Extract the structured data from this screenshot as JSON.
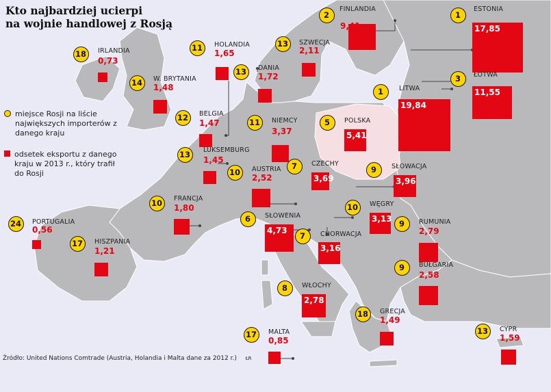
{
  "title_lines": [
    "Kto najbardziej ucierpi",
    "na wojnie handlowej z Rosją"
  ],
  "legend": {
    "rank": "miejsce Rosji na liście największych importerów z danego kraju",
    "share": "odsetek eksportu z danego kraju w 2013 r., który trafił do Rosji"
  },
  "source": "Źródło: United Nations Comtrade (Austria, Holandia i Malta dane za 2012 r.)",
  "credit": "ŁR",
  "colors": {
    "sea": "#e9eaf6",
    "land": "#b9b9bc",
    "poland": "#f6dfe3",
    "marker": "#ffd400",
    "value": "#e30613"
  },
  "map_view": {
    "projection": "equirectangular",
    "lon_range": [
      -10,
      35
    ],
    "lat_range": [
      34,
      63
    ]
  },
  "chart_data": {
    "type": "map-bubbles",
    "value_unit": "%",
    "countries": [
      {
        "name": "FINLANDIA",
        "rank": "2",
        "value": "9,41",
        "v": 9.41
      },
      {
        "name": "ESTONIA",
        "rank": "1",
        "value": "17,85",
        "v": 17.85
      },
      {
        "name": "ŁOTWA",
        "rank": "3",
        "value": "11,55",
        "v": 11.55
      },
      {
        "name": "LITWA",
        "rank": "1",
        "value": "19,84",
        "v": 19.84
      },
      {
        "name": "SZWECJA",
        "rank": "13",
        "value": "2,11",
        "v": 2.11
      },
      {
        "name": "IRLANDIA",
        "rank": "18",
        "value": "0,73",
        "v": 0.73
      },
      {
        "name": "HOLANDIA",
        "rank": "11",
        "value": "1,65",
        "v": 1.65
      },
      {
        "name": "DANIA",
        "rank": "13",
        "value": "1,72",
        "v": 1.72
      },
      {
        "name": "W. BRYTANIA",
        "rank": "14",
        "value": "1,48",
        "v": 1.48
      },
      {
        "name": "BELGIA",
        "rank": "12",
        "value": "1,47",
        "v": 1.47
      },
      {
        "name": "NIEMCY",
        "rank": "11",
        "value": "3,37",
        "v": 3.37
      },
      {
        "name": "POLSKA",
        "rank": "5",
        "value": "5,41",
        "v": 5.41
      },
      {
        "name": "LUKSEMBURG",
        "rank": "13",
        "value": "1,45",
        "v": 1.45
      },
      {
        "name": "CZECHY",
        "rank": "7",
        "value": "3,69",
        "v": 3.69
      },
      {
        "name": "SŁOWACJA",
        "rank": "9",
        "value": "3,96",
        "v": 3.96
      },
      {
        "name": "AUSTRIA",
        "rank": "10",
        "value": "2,52",
        "v": 2.52
      },
      {
        "name": "FRANCJA",
        "rank": "10",
        "value": "1,80",
        "v": 1.8
      },
      {
        "name": "WĘGRY",
        "rank": "10",
        "value": "3,13",
        "v": 3.13
      },
      {
        "name": "SŁOWENIA",
        "rank": "6",
        "value": "4,73",
        "v": 4.73
      },
      {
        "name": "RUMUNIA",
        "rank": "9",
        "value": "2,79",
        "v": 2.79
      },
      {
        "name": "CHORWACJA",
        "rank": "7",
        "value": "3,16",
        "v": 3.16
      },
      {
        "name": "PORTUGALIA",
        "rank": "24",
        "value": "0,56",
        "v": 0.56
      },
      {
        "name": "HISZPANIA",
        "rank": "17",
        "value": "1,21",
        "v": 1.21
      },
      {
        "name": "BUŁGARIA",
        "rank": "9",
        "value": "2,58",
        "v": 2.58
      },
      {
        "name": "WŁOCHY",
        "rank": "8",
        "value": "2,78",
        "v": 2.78
      },
      {
        "name": "GRECJA",
        "rank": "18",
        "value": "1,49",
        "v": 1.49
      },
      {
        "name": "MALTA",
        "rank": "17",
        "value": "0,85",
        "v": 0.85
      },
      {
        "name": "CYPR",
        "rank": "13",
        "value": "1,59",
        "v": 1.59
      }
    ]
  }
}
